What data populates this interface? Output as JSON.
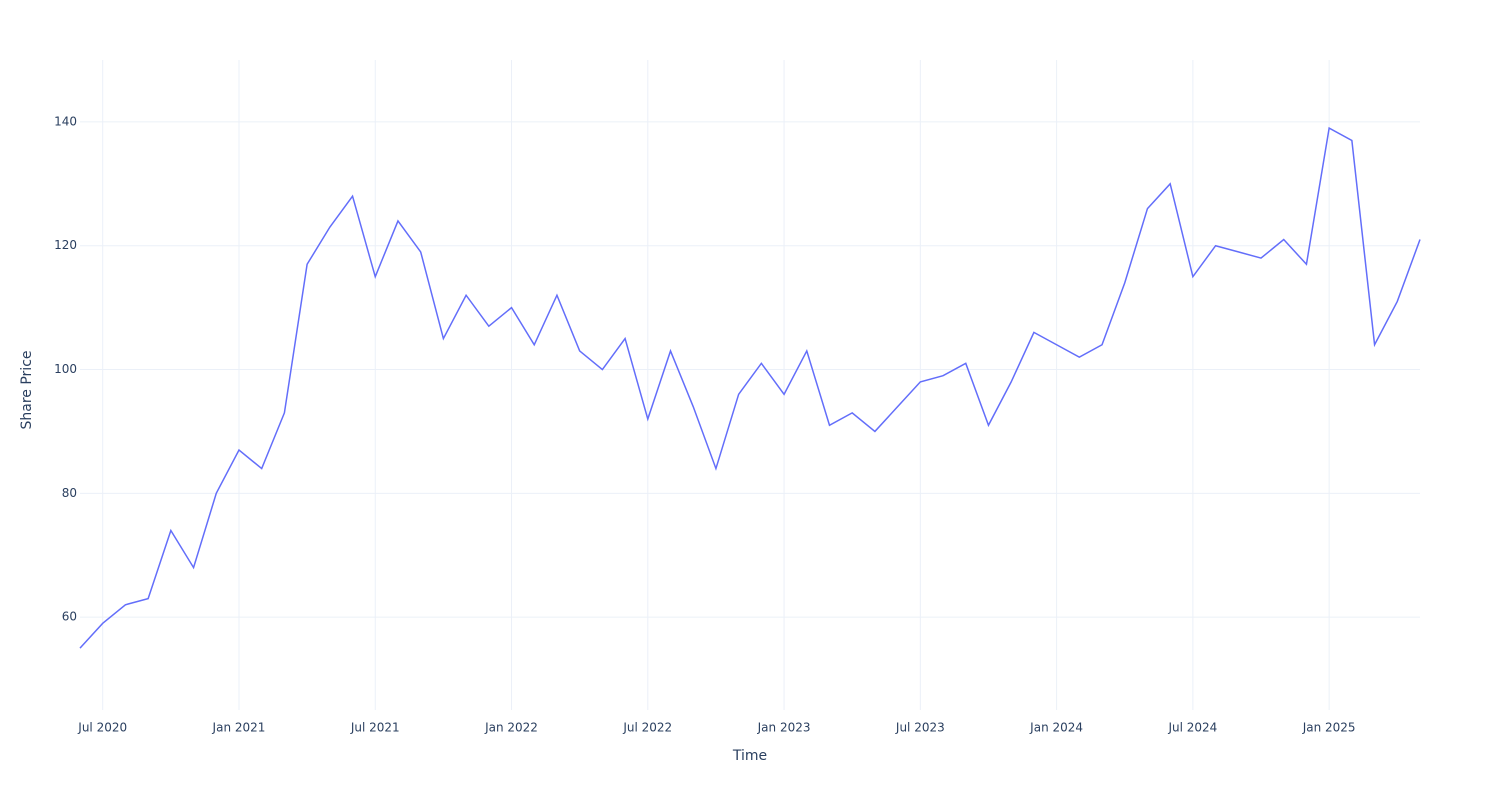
{
  "chart_data": {
    "type": "line",
    "x_label": "Time",
    "y_label": "Share Price",
    "x": [
      "2020-06",
      "2020-07",
      "2020-08",
      "2020-09",
      "2020-10",
      "2020-11",
      "2020-12",
      "2021-01",
      "2021-02",
      "2021-03",
      "2021-04",
      "2021-05",
      "2021-06",
      "2021-07",
      "2021-08",
      "2021-09",
      "2021-10",
      "2021-11",
      "2021-12",
      "2022-01",
      "2022-02",
      "2022-03",
      "2022-04",
      "2022-05",
      "2022-06",
      "2022-07",
      "2022-08",
      "2022-09",
      "2022-10",
      "2022-11",
      "2022-12",
      "2023-01",
      "2023-02",
      "2023-03",
      "2023-04",
      "2023-05",
      "2023-06",
      "2023-07",
      "2023-08",
      "2023-09",
      "2023-10",
      "2023-11",
      "2023-12",
      "2024-01",
      "2024-02",
      "2024-03",
      "2024-04",
      "2024-05",
      "2024-06",
      "2024-07",
      "2024-08",
      "2024-09",
      "2024-10",
      "2024-11",
      "2024-12",
      "2025-01",
      "2025-02",
      "2025-03",
      "2025-04",
      "2025-05"
    ],
    "series": [
      {
        "name": "Share Price",
        "color": "#636efa",
        "values": [
          55,
          59,
          62,
          63,
          74,
          68,
          80,
          87,
          84,
          93,
          117,
          123,
          128,
          115,
          124,
          119,
          105,
          112,
          107,
          110,
          104,
          112,
          103,
          100,
          105,
          92,
          103,
          94,
          84,
          96,
          101,
          96,
          103,
          91,
          93,
          90,
          94,
          98,
          99,
          101,
          91,
          98,
          106,
          104,
          102,
          104,
          114,
          126,
          130,
          115,
          120,
          119,
          118,
          121,
          117,
          139,
          137,
          104,
          111,
          121
        ]
      }
    ],
    "xlim": [
      "2020-06",
      "2025-05"
    ],
    "xticks": [
      {
        "value": "2020-07",
        "label": "Jul 2020"
      },
      {
        "value": "2021-01",
        "label": "Jan 2021"
      },
      {
        "value": "2021-07",
        "label": "Jul 2021"
      },
      {
        "value": "2022-01",
        "label": "Jan 2022"
      },
      {
        "value": "2022-07",
        "label": "Jul 2022"
      },
      {
        "value": "2023-01",
        "label": "Jan 2023"
      },
      {
        "value": "2023-07",
        "label": "Jul 2023"
      },
      {
        "value": "2024-01",
        "label": "Jan 2024"
      },
      {
        "value": "2024-07",
        "label": "Jul 2024"
      },
      {
        "value": "2025-01",
        "label": "Jan 2025"
      }
    ],
    "ylim": [
      45,
      150
    ],
    "yticks": [
      60,
      80,
      100,
      120,
      140
    ],
    "grid": true
  }
}
